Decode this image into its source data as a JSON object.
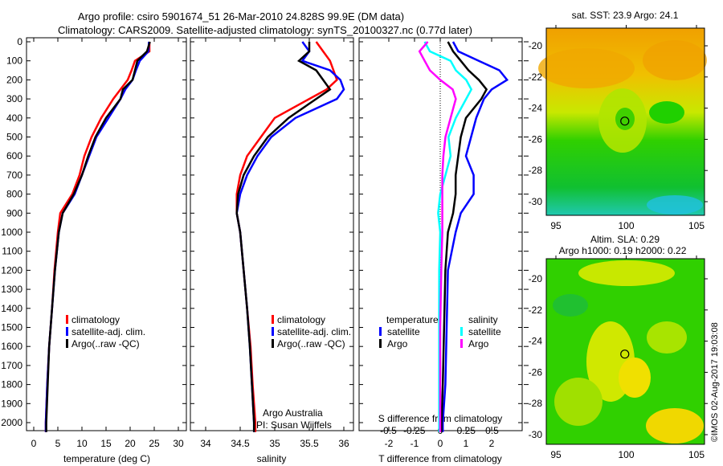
{
  "title": {
    "line1": "Argo profile: csiro 5901674_51 26-Mar-2010 24.828S 99.9E (DM data)",
    "line2": "Climatology: CARS2009. Satellite-adjusted climatology: synTS_20100327.nc (0.77d later)"
  },
  "colors": {
    "climatology": "#ff0000",
    "satellite": "#0000ff",
    "argo": "#000000",
    "sal_satellite": "#00ffff",
    "sal_argo": "#ff00ff"
  },
  "depth_ticks": [
    "0",
    "100",
    "200",
    "300",
    "400",
    "500",
    "600",
    "700",
    "800",
    "900",
    "1000",
    "1100",
    "1200",
    "1300",
    "1400",
    "1500",
    "1600",
    "1700",
    "1800",
    "1900",
    "2000"
  ],
  "chart_data": [
    {
      "type": "line",
      "xlabel": "temperature (deg C)",
      "ylabel": "depth",
      "xlim": [
        -2,
        32
      ],
      "ylim": [
        2060,
        0
      ],
      "xticks": [
        "0",
        "5",
        "10",
        "15",
        "20",
        "25",
        "30"
      ],
      "legend": [
        "climatology",
        "satellite-adj. clim.",
        "Argo(..raw -QC)"
      ],
      "depth": [
        0,
        50,
        100,
        150,
        200,
        250,
        300,
        400,
        500,
        600,
        700,
        800,
        900,
        1000,
        1200,
        1400,
        1600,
        1800,
        2000,
        2050
      ],
      "series": [
        {
          "name": "climatology",
          "values": [
            24,
            24,
            21,
            20.3,
            19.5,
            18,
            16.5,
            14,
            12,
            10.5,
            9.5,
            8,
            5.5,
            5,
            4.3,
            3.8,
            3.2,
            2.8,
            2.5,
            2.5
          ]
        },
        {
          "name": "satellite-adj. clim.",
          "values": [
            23.9,
            23.8,
            22,
            21.2,
            20.5,
            19,
            18,
            15.5,
            13,
            11.5,
            10,
            8.5,
            6,
            5.2,
            4.4,
            3.8,
            3.2,
            2.8,
            2.5,
            2.5
          ]
        },
        {
          "name": "Argo(..raw -QC)",
          "values": [
            24.1,
            23.5,
            21.5,
            21,
            20.5,
            18.5,
            18,
            15,
            12.8,
            11.3,
            10,
            8.3,
            6,
            5.2,
            4.4,
            3.8,
            3.2,
            2.9,
            2.6,
            2.6
          ]
        }
      ]
    },
    {
      "type": "line",
      "xlabel": "salinity",
      "xlim": [
        33.75,
        36.1
      ],
      "ylim": [
        2060,
        0
      ],
      "xticks": [
        "34",
        "34.5",
        "35",
        "35.5",
        "36"
      ],
      "legend": [
        "climatology",
        "satellite-adj. clim.",
        "Argo(..raw -QC)"
      ],
      "credit": [
        "Argo Australia",
        "PI: Susan Wijffels"
      ],
      "depth": [
        0,
        50,
        100,
        150,
        200,
        250,
        300,
        400,
        500,
        600,
        700,
        800,
        900,
        1000,
        1200,
        1400,
        1600,
        1800,
        2000,
        2050
      ],
      "series": [
        {
          "name": "climatology",
          "values": [
            35.6,
            35.7,
            35.8,
            35.85,
            35.9,
            35.75,
            35.5,
            35.0,
            34.8,
            34.6,
            34.5,
            34.45,
            34.45,
            34.5,
            34.55,
            34.6,
            34.65,
            34.68,
            34.72,
            34.72
          ]
        },
        {
          "name": "satellite-adj. clim.",
          "values": [
            35.4,
            35.5,
            35.4,
            35.8,
            35.95,
            36.0,
            35.9,
            35.3,
            34.95,
            34.75,
            34.6,
            34.5,
            34.45,
            34.5,
            34.55,
            34.6,
            34.64,
            34.67,
            34.7,
            34.7
          ]
        },
        {
          "name": "Argo(..raw -QC)",
          "values": [
            35.5,
            35.5,
            35.35,
            35.6,
            35.7,
            35.8,
            35.6,
            35.2,
            34.9,
            34.7,
            34.55,
            34.47,
            34.45,
            34.5,
            34.55,
            34.6,
            34.64,
            34.67,
            34.7,
            34.7
          ]
        }
      ]
    },
    {
      "type": "line",
      "xlabel": "T difference from climatology",
      "x2label": "S difference from climatology",
      "xlim": [
        -2.9,
        3.2
      ],
      "x2lim": [
        -0.725,
        0.8
      ],
      "ylim": [
        2060,
        0
      ],
      "xticks": [
        "-2",
        "-1",
        "0",
        "1",
        "2"
      ],
      "x2ticks": [
        "-0.5",
        "-0.25",
        "0",
        "0.25",
        "0.5"
      ],
      "legend_titles": [
        "temperature",
        "salinity"
      ],
      "legend": [
        "satellite",
        "Argo",
        "satellite",
        "Argo"
      ],
      "depth": [
        0,
        50,
        100,
        150,
        200,
        250,
        300,
        400,
        500,
        600,
        700,
        800,
        900,
        1000,
        1200,
        1500,
        1800,
        2000,
        2050
      ],
      "series": [
        {
          "name": "T satellite",
          "axis": "T",
          "values": [
            0.5,
            0.7,
            1.5,
            2.3,
            2.6,
            2.0,
            1.7,
            1.4,
            1.2,
            1.0,
            1.3,
            1.3,
            0.8,
            0.6,
            0.3,
            0.25,
            0.2,
            0.1,
            0.1
          ]
        },
        {
          "name": "T Argo",
          "axis": "T",
          "values": [
            0.3,
            0.5,
            0.8,
            1.1,
            1.5,
            1.8,
            1.6,
            1.0,
            0.8,
            0.7,
            0.6,
            0.6,
            0.5,
            0.3,
            0.2,
            0.15,
            0.1,
            0.05,
            0.05
          ]
        },
        {
          "name": "S satellite",
          "axis": "S",
          "values": [
            -0.15,
            -0.1,
            0.1,
            0.15,
            0.25,
            0.3,
            0.25,
            0.15,
            0.08,
            0.1,
            0.05,
            0.0,
            -0.02,
            0.0,
            -0.01,
            -0.01,
            -0.01,
            -0.01,
            -0.01
          ]
        },
        {
          "name": "S Argo",
          "axis": "S",
          "values": [
            -0.12,
            -0.2,
            -0.15,
            -0.1,
            0.0,
            0.12,
            0.15,
            0.1,
            0.05,
            0.03,
            0.02,
            0.02,
            0.02,
            0.02,
            0.01,
            0.0,
            0.0,
            0.0,
            0.0
          ]
        }
      ]
    },
    {
      "type": "heatmap",
      "title": "sat. SST: 23.9 Argo: 24.1",
      "lon_ticks": [
        "95",
        "100",
        "105"
      ],
      "lat_ticks": [
        "-20",
        "-22",
        "-24",
        "-26",
        "-28",
        "-30"
      ],
      "marker": {
        "lon": 99.9,
        "lat": -24.83
      }
    },
    {
      "type": "heatmap",
      "title": [
        "Altim. SLA: 0.29",
        "Argo h1000: 0.19 h2000: 0.22"
      ],
      "lon_ticks": [
        "95",
        "100",
        "105"
      ],
      "lat_ticks": [
        "-20",
        "-22",
        "-24",
        "-26",
        "-28",
        "-30"
      ],
      "marker": {
        "lon": 99.9,
        "lat": -24.83
      }
    }
  ],
  "footer": "©IMOS 02-Aug-2017 19:03:08"
}
